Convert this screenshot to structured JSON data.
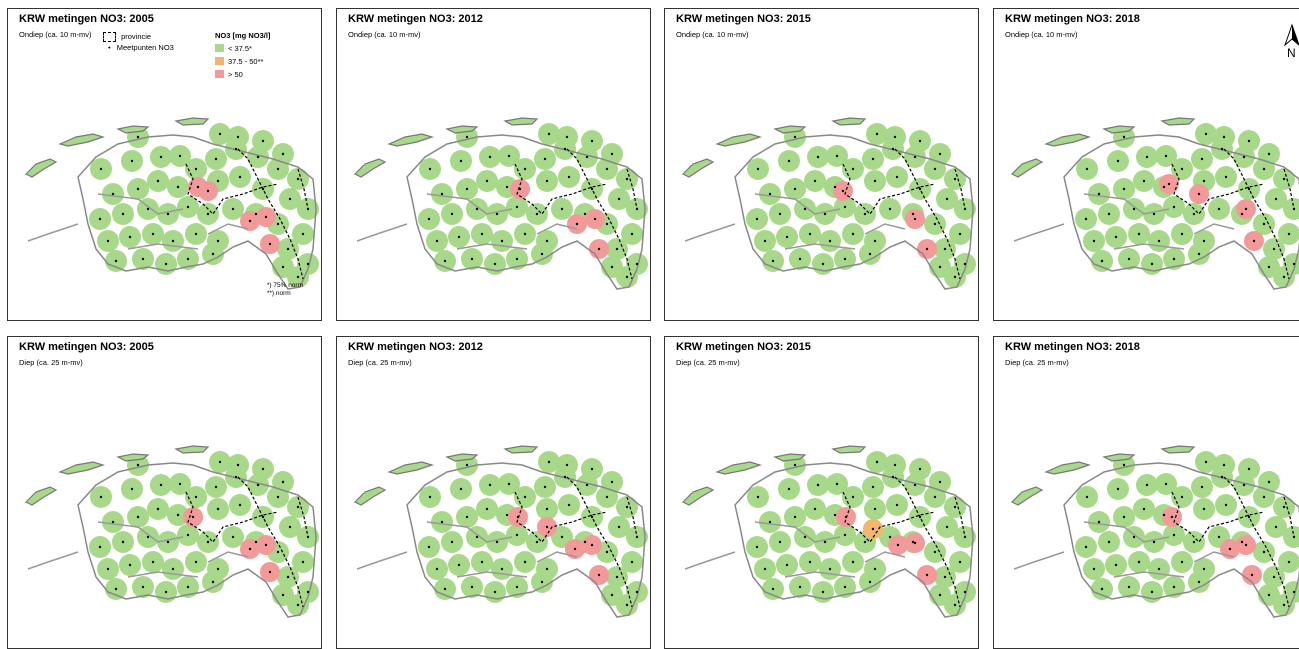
{
  "panels": [
    {
      "title": "KRW metingen NO3: 2005",
      "subtitle": "Ondiep (ca. 10 m-mv)",
      "variant": "shallow2005"
    },
    {
      "title": "KRW metingen NO3: 2012",
      "subtitle": "Ondiep (ca. 10 m-mv)",
      "variant": "shallow2012"
    },
    {
      "title": "KRW metingen NO3: 2015",
      "subtitle": "Ondiep (ca. 10 m-mv)",
      "variant": "shallow2015"
    },
    {
      "title": "KRW metingen NO3: 2018",
      "subtitle": "Ondiep (ca. 10 m-mv)",
      "variant": "shallow2018"
    },
    {
      "title": "KRW metingen NO3: 2005",
      "subtitle": "Diep (ca. 25 m-mv)",
      "variant": "deep2005"
    },
    {
      "title": "KRW metingen NO3: 2012",
      "subtitle": "Diep (ca. 25 m-mv)",
      "variant": "deep2012"
    },
    {
      "title": "KRW metingen NO3: 2015",
      "subtitle": "Diep (ca. 25 m-mv)",
      "variant": "deep2015"
    },
    {
      "title": "KRW metingen NO3: 2018",
      "subtitle": "Diep (ca. 25 m-mv)",
      "variant": "deep2018"
    }
  ],
  "legend": {
    "provincie": "provincie",
    "meetpunten": "Meetpunten NO3",
    "title": "NO3 [mg NO3/l]",
    "classes": [
      {
        "label": "< 37.5*",
        "color": "#a8d88a"
      },
      {
        "label": "37.5 - 50**",
        "color": "#f2b66d"
      },
      {
        "label": "> 50",
        "color": "#f29a9a"
      }
    ]
  },
  "notes": {
    "line1": "*) 75% norm",
    "line2": "**) norm"
  },
  "north": {
    "label": "N"
  },
  "colors": {
    "green": "#a8d88a",
    "orange": "#f2b66d",
    "red": "#f29a9a"
  }
}
